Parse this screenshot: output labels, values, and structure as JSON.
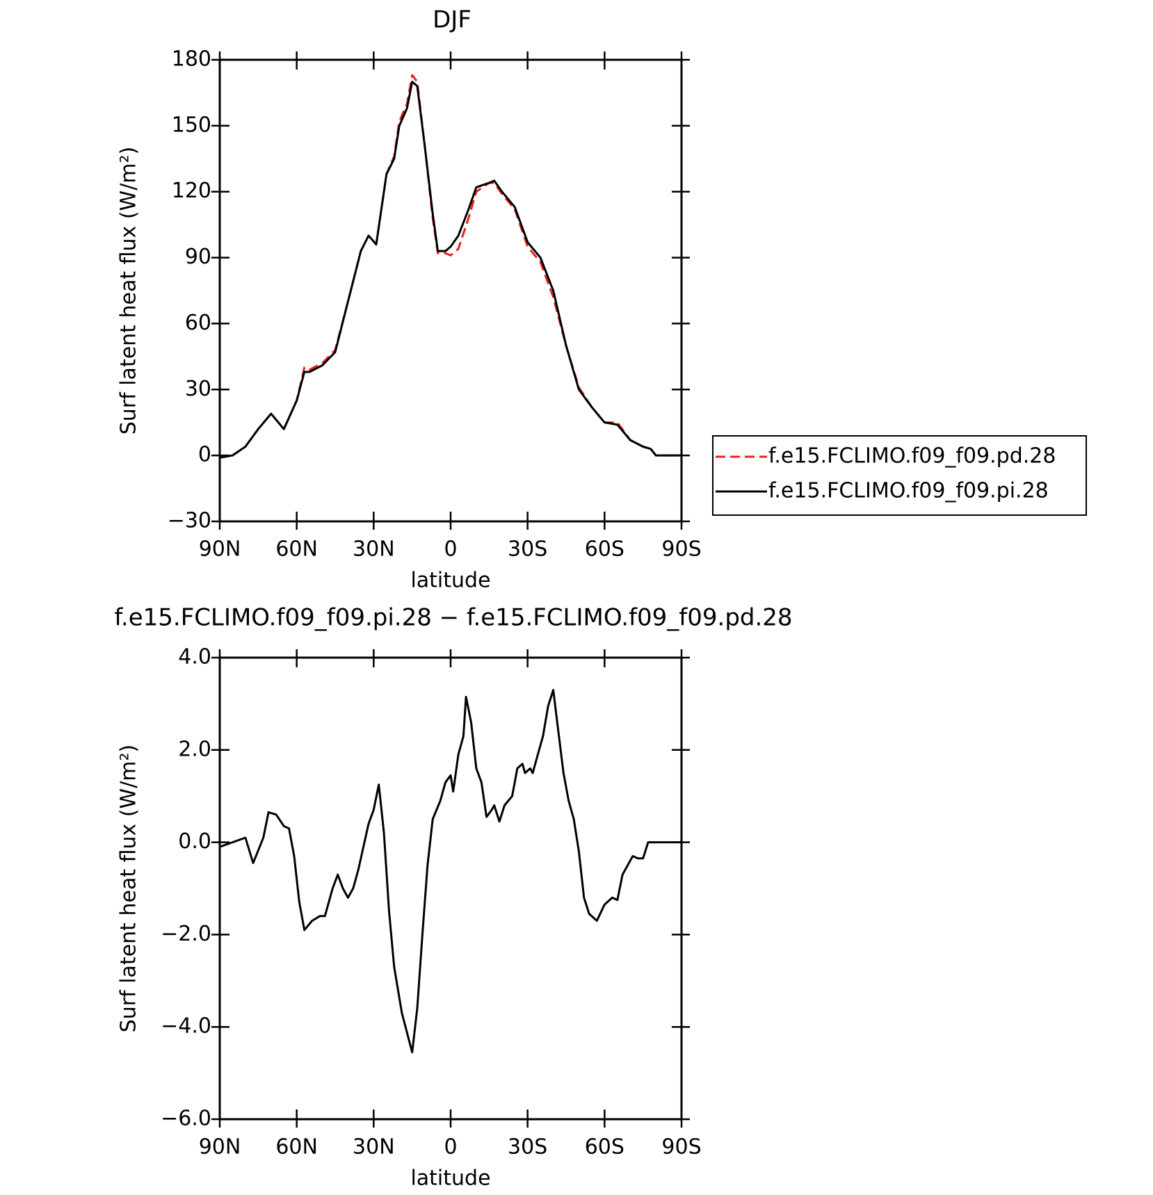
{
  "chart_data": [
    {
      "type": "line",
      "title": "DJF",
      "x_label": "latitude",
      "y_label": "Surf latent heat flux (W/m²)",
      "x": [
        90,
        85,
        80,
        75,
        70,
        65,
        60,
        57,
        55,
        50,
        45,
        40,
        35,
        32,
        29,
        25,
        22,
        20,
        17,
        15,
        13,
        10,
        7,
        5,
        2,
        0,
        -3,
        -7,
        -10,
        -15,
        -17,
        -20,
        -25,
        -30,
        -35,
        -40,
        -45,
        -50,
        -55,
        -60,
        -65,
        -70,
        -75,
        -78,
        -80,
        -85,
        -90
      ],
      "series": [
        {
          "name": "f.e15.FCLIMO.f09_f09.pd.28",
          "color": "#e8211d",
          "line_style": "dashed",
          "values": [
            -1,
            0,
            4,
            12,
            19,
            12,
            25,
            40,
            39,
            42,
            48,
            70,
            93,
            100,
            96,
            128,
            136,
            152,
            160,
            173,
            170,
            140,
            108,
            92,
            92,
            91,
            94,
            108,
            120,
            124,
            124,
            119,
            112,
            95,
            88,
            72,
            50,
            31,
            22,
            15,
            15,
            7,
            4,
            3,
            0,
            0,
            0
          ]
        },
        {
          "name": "f.e15.FCLIMO.f09_f09.pi.28",
          "color": "#000000",
          "line_style": "solid",
          "values": [
            -1,
            0,
            4,
            12,
            19,
            12,
            25,
            38,
            38,
            41,
            47,
            70,
            93,
            100,
            96,
            128,
            135,
            150,
            158,
            170,
            168,
            140,
            110,
            93,
            93,
            95,
            100,
            112,
            122,
            124,
            125,
            120,
            113,
            97,
            90,
            75,
            50,
            30,
            22,
            15,
            14,
            7,
            4,
            3,
            0,
            0,
            0
          ]
        }
      ],
      "xlim": [
        90,
        -90
      ],
      "xticks": [
        {
          "value": 90,
          "label": "90N"
        },
        {
          "value": 60,
          "label": "60N"
        },
        {
          "value": 30,
          "label": "30N"
        },
        0,
        {
          "value": -30,
          "label": "30S"
        },
        {
          "value": -60,
          "label": "60S"
        },
        {
          "value": -90,
          "label": "90S"
        }
      ],
      "ylim": [
        -30,
        180
      ],
      "yticks": [
        {
          "value": -30,
          "label": "−30"
        },
        0,
        30,
        60,
        90,
        120,
        150,
        180
      ],
      "legend": "right"
    },
    {
      "type": "line",
      "title": "f.e15.FCLIMO.f09_f09.pi.28 − f.e15.FCLIMO.f09_f09.pd.28",
      "x_label": "latitude",
      "y_label": "Surf latent heat flux (W/m²)",
      "x": [
        90,
        85,
        80,
        77,
        73,
        71,
        68,
        65,
        63,
        61,
        59,
        57,
        54,
        51,
        49,
        46,
        44,
        42,
        40,
        38,
        36,
        34,
        32,
        30,
        28,
        26,
        24,
        22,
        19,
        15,
        13,
        11,
        9,
        7,
        4,
        2,
        0,
        -1,
        -3,
        -5,
        -6,
        -8,
        -10,
        -12,
        -14,
        -16,
        -17,
        -19,
        -21,
        -24,
        -26,
        -28,
        -29,
        -31,
        -32,
        -34,
        -36,
        -38,
        -40,
        -42,
        -44,
        -46,
        -48,
        -50,
        -52,
        -54,
        -56,
        -57,
        -60,
        -63,
        -65,
        -67,
        -69,
        -71,
        -73,
        -75,
        -77,
        -80,
        -85,
        -90
      ],
      "series": [
        {
          "name": null,
          "color": "#000000",
          "line_style": "solid",
          "values": [
            -0.1,
            0.0,
            0.1,
            -0.45,
            0.1,
            0.65,
            0.6,
            0.35,
            0.3,
            -0.3,
            -1.3,
            -1.9,
            -1.7,
            -1.6,
            -1.6,
            -1.0,
            -0.7,
            -1.0,
            -1.2,
            -1.0,
            -0.6,
            -0.1,
            0.4,
            0.7,
            1.25,
            0.2,
            -1.5,
            -2.7,
            -3.7,
            -4.55,
            -3.6,
            -2.0,
            -0.5,
            0.5,
            0.9,
            1.3,
            1.45,
            1.1,
            1.9,
            2.3,
            3.15,
            2.6,
            1.6,
            1.3,
            0.55,
            0.7,
            0.8,
            0.45,
            0.8,
            1.0,
            1.6,
            1.7,
            1.5,
            1.6,
            1.5,
            1.9,
            2.3,
            2.95,
            3.3,
            2.4,
            1.5,
            0.9,
            0.5,
            -0.2,
            -1.2,
            -1.55,
            -1.65,
            -1.7,
            -1.35,
            -1.2,
            -1.25,
            -0.7,
            -0.5,
            -0.3,
            -0.35,
            -0.35,
            0.0,
            0.0,
            0.0,
            0.0
          ]
        }
      ],
      "xlim": [
        90,
        -90
      ],
      "xticks": [
        {
          "value": 90,
          "label": "90N"
        },
        {
          "value": 60,
          "label": "60N"
        },
        {
          "value": 30,
          "label": "30N"
        },
        0,
        {
          "value": -30,
          "label": "30S"
        },
        {
          "value": -60,
          "label": "60S"
        },
        {
          "value": -90,
          "label": "90S"
        }
      ],
      "ylim": [
        -6,
        4
      ],
      "yticks": [
        {
          "value": -6,
          "label": "−6.0"
        },
        {
          "value": -4,
          "label": "−4.0"
        },
        {
          "value": -2,
          "label": "−2.0"
        },
        {
          "value": 0,
          "label": "0.0"
        },
        {
          "value": 2,
          "label": "2.0"
        },
        {
          "value": 4,
          "label": "4.0"
        }
      ]
    }
  ]
}
